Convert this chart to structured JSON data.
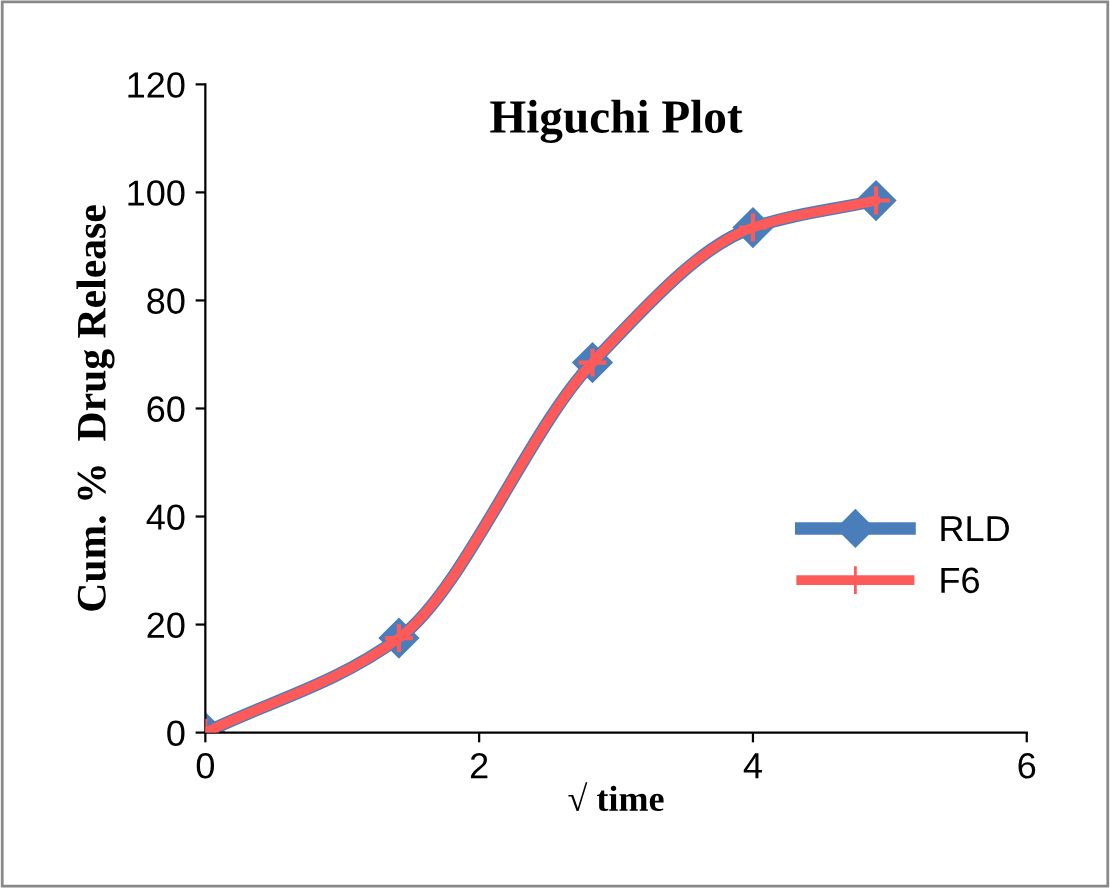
{
  "chart_data": {
    "type": "line",
    "title": "Higuchi Plot",
    "xlabel": "√ time",
    "ylabel": "Cum. %  Drug Release",
    "x": [
      0,
      1.414,
      2.828,
      4,
      4.899
    ],
    "series": [
      {
        "name": "RLD",
        "color": "#4a7ebb",
        "values": [
          0,
          17.5,
          68.5,
          93.5,
          98.5
        ],
        "marker": "diamond"
      },
      {
        "name": "F6",
        "color": "#ff5a5a",
        "values": [
          0,
          17.5,
          68.5,
          93.5,
          98.5
        ],
        "marker": "cross"
      }
    ],
    "xlim": [
      0,
      6
    ],
    "xticks": [
      0,
      2,
      4,
      6
    ],
    "ylim": [
      0,
      120
    ],
    "yticks": [
      0,
      20,
      40,
      60,
      80,
      100,
      120
    ],
    "grid": false,
    "legend": "right"
  }
}
